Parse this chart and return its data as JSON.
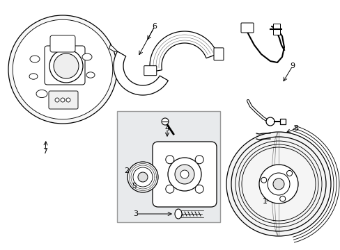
{
  "background_color": "#ffffff",
  "fig_width": 4.89,
  "fig_height": 3.6,
  "dpi": 100,
  "box_color": "#e8eaec",
  "ec": "black",
  "lw": 0.9
}
